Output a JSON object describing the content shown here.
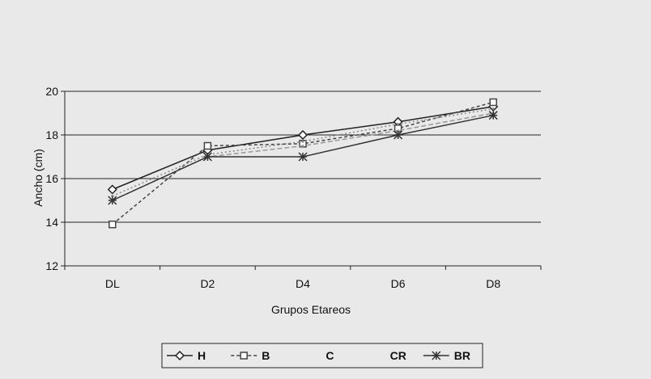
{
  "chart_data": {
    "type": "line",
    "xlabel": "Grupos Etareos",
    "ylabel": "Ancho (cm)",
    "categories": [
      "DL",
      "D2",
      "D4",
      "D6",
      "D8"
    ],
    "ylim": [
      12,
      20
    ],
    "yticks": [
      12,
      14,
      16,
      18,
      20
    ],
    "grid": true,
    "legend_position": "bottom",
    "series": [
      {
        "name": "H",
        "marker": "diamond",
        "color": "#222222",
        "values": [
          15.5,
          17.3,
          18.0,
          18.6,
          19.3
        ]
      },
      {
        "name": "B",
        "marker": "square",
        "color": "#444444",
        "values": [
          13.9,
          17.5,
          17.6,
          18.3,
          19.5
        ]
      },
      {
        "name": "C",
        "marker": "none",
        "color": "#888888",
        "values": [
          15.2,
          17.1,
          17.7,
          18.5,
          19.2
        ]
      },
      {
        "name": "CR",
        "marker": "none",
        "color": "#999999",
        "values": [
          15.0,
          17.0,
          17.5,
          18.2,
          19.0
        ]
      },
      {
        "name": "BR",
        "marker": "star",
        "color": "#333333",
        "values": [
          15.0,
          17.0,
          17.0,
          18.0,
          18.9
        ]
      }
    ]
  }
}
